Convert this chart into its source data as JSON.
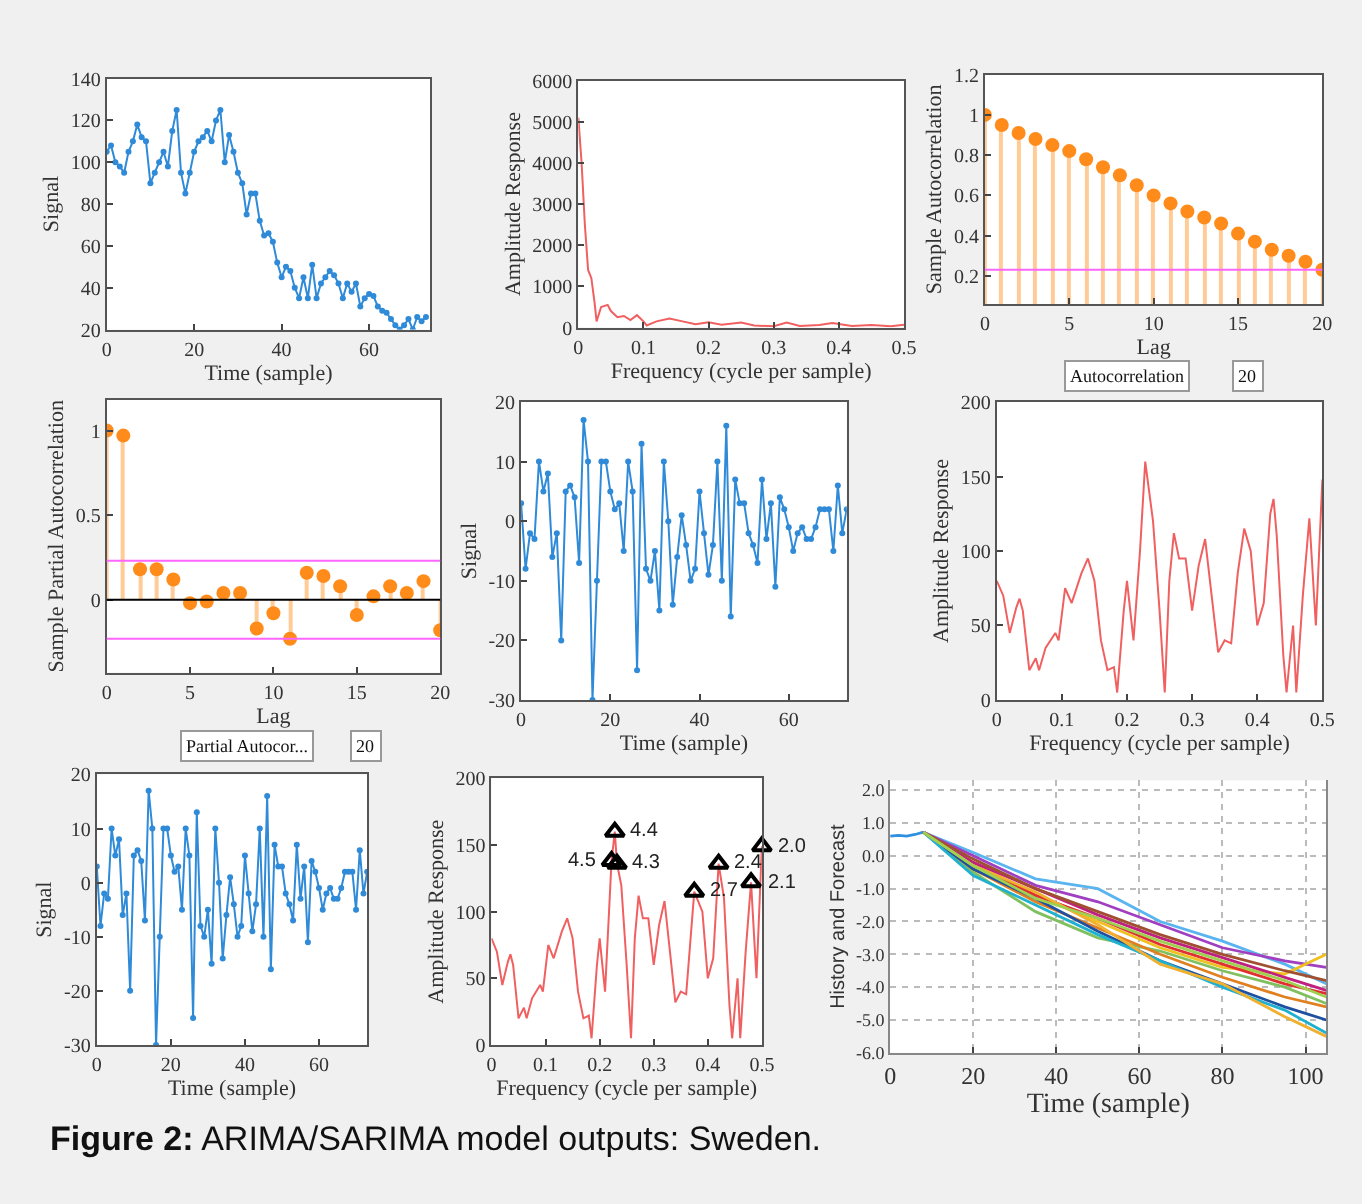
{
  "chart_data": [
    {
      "type": "line",
      "xlabel": "Time (sample)",
      "ylabel": "Signal",
      "marker": "circle",
      "xlim": [
        0,
        74
      ],
      "xticks": [
        0,
        20,
        40,
        60
      ],
      "ylim": [
        20,
        140
      ],
      "yticks": [
        20,
        40,
        60,
        80,
        100,
        120,
        140
      ],
      "x": [
        0,
        1,
        2,
        3,
        4,
        5,
        6,
        7,
        8,
        9,
        10,
        11,
        12,
        13,
        14,
        15,
        16,
        17,
        18,
        19,
        20,
        21,
        22,
        23,
        24,
        25,
        26,
        27,
        28,
        29,
        30,
        31,
        32,
        33,
        34,
        35,
        36,
        37,
        38,
        39,
        40,
        41,
        42,
        43,
        44,
        45,
        46,
        47,
        48,
        49,
        50,
        51,
        52,
        53,
        54,
        55,
        56,
        57,
        58,
        59,
        60,
        61,
        62,
        63,
        64,
        65,
        66,
        67,
        68,
        69,
        70,
        71,
        72,
        73
      ],
      "series": [
        {
          "color": "#2f8ad8",
          "values": [
            105,
            108,
            100,
            98,
            95,
            105,
            110,
            118,
            112,
            110,
            90,
            95,
            100,
            105,
            98,
            115,
            125,
            95,
            85,
            95,
            105,
            110,
            112,
            115,
            110,
            120,
            125,
            100,
            113,
            105,
            95,
            90,
            75,
            85,
            85,
            72,
            65,
            66,
            62,
            52,
            45,
            50,
            48,
            40,
            35,
            45,
            35,
            51,
            35,
            42,
            45,
            48,
            46,
            42,
            35,
            42,
            38,
            42,
            31,
            35,
            37,
            36,
            31,
            29,
            28,
            25,
            22,
            20,
            22,
            25,
            20,
            26,
            24,
            26
          ]
        }
      ]
    },
    {
      "type": "line",
      "xlabel": "Frequency (cycle per sample)",
      "ylabel": "Amplitude Response",
      "xlim": [
        0,
        0.5
      ],
      "xticks": [
        0,
        0.1,
        0.2,
        0.3,
        0.4,
        0.5
      ],
      "ylim": [
        0,
        6000
      ],
      "yticks": [
        0,
        1000,
        2000,
        3000,
        4000,
        5000,
        6000
      ],
      "x": [
        0,
        0.005,
        0.01,
        0.015,
        0.02,
        0.025,
        0.028,
        0.035,
        0.045,
        0.05,
        0.06,
        0.07,
        0.08,
        0.09,
        0.1,
        0.105,
        0.12,
        0.14,
        0.16,
        0.18,
        0.2,
        0.22,
        0.25,
        0.27,
        0.3,
        0.32,
        0.34,
        0.37,
        0.39,
        0.42,
        0.45,
        0.48,
        0.5
      ],
      "series": [
        {
          "color": "#f06060",
          "values": [
            5100,
            4000,
            2500,
            1400,
            1200,
            600,
            150,
            500,
            550,
            400,
            250,
            280,
            180,
            300,
            150,
            50,
            150,
            220,
            150,
            80,
            130,
            70,
            120,
            50,
            30,
            120,
            40,
            60,
            110,
            40,
            60,
            30,
            70
          ]
        }
      ]
    },
    {
      "type": "lollipop",
      "xlabel": "Lag",
      "ylabel": "Sample Autocorrelation",
      "marker": "circle",
      "xlim": [
        0,
        20
      ],
      "xticks": [
        0,
        5,
        10,
        15,
        20
      ],
      "ylim": [
        0.06,
        1.2
      ],
      "yticks": [
        0.2,
        0.4,
        0.6,
        0.8,
        1,
        1.2
      ],
      "x": [
        0,
        1,
        2,
        3,
        4,
        5,
        6,
        7,
        8,
        9,
        10,
        11,
        12,
        13,
        14,
        15,
        16,
        17,
        18,
        19,
        20
      ],
      "series": [
        {
          "color": "#ff8c1a",
          "values": [
            1,
            0.95,
            0.91,
            0.88,
            0.85,
            0.82,
            0.78,
            0.74,
            0.7,
            0.65,
            0.6,
            0.56,
            0.52,
            0.49,
            0.46,
            0.41,
            0.37,
            0.33,
            0.3,
            0.27,
            0.23
          ]
        }
      ],
      "ref_lines": [
        {
          "axis": "y",
          "value": 0.23,
          "color": "#ff66ff"
        }
      ],
      "annotations": [
        "Autocorrelation",
        "20"
      ]
    },
    {
      "type": "lollipop",
      "xlabel": "Lag",
      "ylabel": "Sample Partial Autocorrelation",
      "marker": "circle",
      "xlim": [
        0,
        20
      ],
      "xticks": [
        0,
        5,
        10,
        15,
        20
      ],
      "ylim": [
        -0.43,
        1.18
      ],
      "yticks": [
        0,
        0.5,
        1
      ],
      "x": [
        0,
        1,
        2,
        3,
        4,
        5,
        6,
        7,
        8,
        9,
        10,
        11,
        12,
        13,
        14,
        15,
        16,
        17,
        18,
        19,
        20
      ],
      "series": [
        {
          "color": "#ff8c1a",
          "values": [
            1,
            0.97,
            0.18,
            0.18,
            0.12,
            -0.02,
            -0.01,
            0.04,
            0.04,
            -0.17,
            -0.08,
            -0.23,
            0.16,
            0.14,
            0.08,
            -0.09,
            0.02,
            0.08,
            0.04,
            0.11,
            -0.18
          ]
        }
      ],
      "ref_lines": [
        {
          "axis": "y",
          "value": 0.23,
          "color": "#ff66ff"
        },
        {
          "axis": "y",
          "value": -0.23,
          "color": "#ff66ff"
        },
        {
          "axis": "y",
          "value": 0,
          "color": "#000000"
        }
      ],
      "annotations": [
        "Partial Autocor...",
        "20"
      ]
    },
    {
      "type": "line",
      "xlabel": "Time (sample)",
      "ylabel": "Signal",
      "marker": "circle",
      "xlim": [
        0,
        73
      ],
      "xticks": [
        0,
        20,
        40,
        60
      ],
      "ylim": [
        -30,
        20
      ],
      "yticks": [
        -30,
        -20,
        -10,
        0,
        10,
        20
      ],
      "x": [
        0,
        1,
        2,
        3,
        4,
        5,
        6,
        7,
        8,
        9,
        10,
        11,
        12,
        13,
        14,
        15,
        16,
        17,
        18,
        19,
        20,
        21,
        22,
        23,
        24,
        25,
        26,
        27,
        28,
        29,
        30,
        31,
        32,
        33,
        34,
        35,
        36,
        37,
        38,
        39,
        40,
        41,
        42,
        43,
        44,
        45,
        46,
        47,
        48,
        49,
        50,
        51,
        52,
        53,
        54,
        55,
        56,
        57,
        58,
        59,
        60,
        61,
        62,
        63,
        64,
        65,
        66,
        67,
        68,
        69,
        70,
        71,
        72,
        73
      ],
      "series": [
        {
          "color": "#2f8ad8",
          "values": [
            3,
            -8,
            -2,
            -3,
            10,
            5,
            8,
            -6,
            -2,
            -20,
            5,
            6,
            4,
            -7,
            17,
            10,
            -30,
            -10,
            10,
            10,
            5,
            2,
            3,
            -5,
            10,
            5,
            -25,
            13,
            -8,
            -10,
            -5,
            -15,
            10,
            0,
            -14,
            -6,
            1,
            -4,
            -10,
            -8,
            5,
            -2,
            -9,
            -4,
            10,
            -10,
            16,
            -16,
            7,
            3,
            3,
            -2,
            -4,
            -7,
            7,
            -3,
            3,
            -11,
            4,
            2,
            -1,
            -5,
            -2,
            -1,
            -3,
            -3,
            -1,
            2,
            2,
            2,
            -5,
            6,
            -2,
            2
          ]
        }
      ]
    },
    {
      "type": "line",
      "xlabel": "Frequency (cycle per sample)",
      "ylabel": "Amplitude Response",
      "xlim": [
        0,
        0.5
      ],
      "xticks": [
        0,
        0.1,
        0.2,
        0.3,
        0.4,
        0.5
      ],
      "ylim": [
        0,
        200
      ],
      "yticks": [
        0,
        50,
        100,
        150,
        200
      ],
      "x": [
        0,
        0.01,
        0.02,
        0.03,
        0.035,
        0.04,
        0.05,
        0.06,
        0.065,
        0.075,
        0.09,
        0.095,
        0.105,
        0.115,
        0.13,
        0.14,
        0.15,
        0.16,
        0.17,
        0.18,
        0.185,
        0.195,
        0.2,
        0.21,
        0.22,
        0.228,
        0.24,
        0.25,
        0.258,
        0.265,
        0.272,
        0.28,
        0.29,
        0.3,
        0.31,
        0.32,
        0.33,
        0.34,
        0.35,
        0.36,
        0.37,
        0.38,
        0.39,
        0.4,
        0.41,
        0.42,
        0.425,
        0.43,
        0.44,
        0.445,
        0.455,
        0.46,
        0.47,
        0.48,
        0.49,
        0.5
      ],
      "series": [
        {
          "color": "#f06060",
          "values": [
            80,
            70,
            45,
            62,
            68,
            60,
            20,
            28,
            20,
            35,
            45,
            40,
            75,
            65,
            85,
            95,
            80,
            40,
            20,
            22,
            5,
            60,
            80,
            40,
            100,
            160,
            120,
            60,
            5,
            80,
            112,
            95,
            95,
            60,
            90,
            108,
            70,
            32,
            40,
            38,
            85,
            115,
            100,
            50,
            65,
            125,
            135,
            110,
            30,
            5,
            50,
            5,
            70,
            122,
            50,
            148
          ]
        }
      ]
    },
    {
      "type": "line",
      "xlabel": "Time (sample)",
      "ylabel": "Signal",
      "marker": "circle",
      "xlim": [
        0,
        73
      ],
      "xticks": [
        0,
        20,
        40,
        60
      ],
      "ylim": [
        -30,
        20
      ],
      "yticks": [
        -30,
        -20,
        -10,
        0,
        10,
        20
      ],
      "x": [
        0,
        1,
        2,
        3,
        4,
        5,
        6,
        7,
        8,
        9,
        10,
        11,
        12,
        13,
        14,
        15,
        16,
        17,
        18,
        19,
        20,
        21,
        22,
        23,
        24,
        25,
        26,
        27,
        28,
        29,
        30,
        31,
        32,
        33,
        34,
        35,
        36,
        37,
        38,
        39,
        40,
        41,
        42,
        43,
        44,
        45,
        46,
        47,
        48,
        49,
        50,
        51,
        52,
        53,
        54,
        55,
        56,
        57,
        58,
        59,
        60,
        61,
        62,
        63,
        64,
        65,
        66,
        67,
        68,
        69,
        70,
        71,
        72,
        73
      ],
      "series": [
        {
          "color": "#2f8ad8",
          "values": [
            3,
            -8,
            -2,
            -3,
            10,
            5,
            8,
            -6,
            -2,
            -20,
            5,
            6,
            4,
            -7,
            17,
            10,
            -30,
            -10,
            10,
            10,
            5,
            2,
            3,
            -5,
            10,
            5,
            -25,
            13,
            -8,
            -10,
            -5,
            -15,
            10,
            0,
            -14,
            -6,
            1,
            -4,
            -10,
            -8,
            5,
            -2,
            -9,
            -4,
            10,
            -10,
            16,
            -16,
            7,
            3,
            3,
            -2,
            -4,
            -7,
            7,
            -3,
            3,
            -11,
            4,
            2,
            -1,
            -5,
            -2,
            -1,
            -3,
            -3,
            -1,
            2,
            2,
            2,
            -5,
            6,
            -2,
            2
          ]
        }
      ]
    },
    {
      "type": "line",
      "xlabel": "Frequency (cycle per sample)",
      "ylabel": "Amplitude Response",
      "xlim": [
        0,
        0.5
      ],
      "xticks": [
        0,
        0.1,
        0.2,
        0.3,
        0.4,
        0.5
      ],
      "ylim": [
        0,
        200
      ],
      "yticks": [
        0,
        50,
        100,
        150,
        200
      ],
      "x": [
        0,
        0.01,
        0.02,
        0.03,
        0.035,
        0.04,
        0.05,
        0.06,
        0.065,
        0.075,
        0.09,
        0.095,
        0.105,
        0.115,
        0.13,
        0.14,
        0.15,
        0.16,
        0.17,
        0.18,
        0.185,
        0.195,
        0.2,
        0.21,
        0.222,
        0.228,
        0.232,
        0.24,
        0.25,
        0.258,
        0.265,
        0.272,
        0.28,
        0.29,
        0.3,
        0.31,
        0.32,
        0.33,
        0.34,
        0.35,
        0.36,
        0.375,
        0.39,
        0.4,
        0.41,
        0.42,
        0.43,
        0.44,
        0.445,
        0.455,
        0.46,
        0.47,
        0.48,
        0.49,
        0.5
      ],
      "series": [
        {
          "color": "#f06060",
          "values": [
            80,
            70,
            45,
            62,
            68,
            60,
            20,
            28,
            20,
            35,
            45,
            40,
            75,
            65,
            85,
            95,
            80,
            40,
            20,
            22,
            5,
            60,
            80,
            40,
            138,
            160,
            136,
            120,
            60,
            5,
            80,
            112,
            95,
            95,
            60,
            90,
            108,
            70,
            32,
            40,
            38,
            115,
            100,
            50,
            65,
            136,
            110,
            30,
            5,
            50,
            5,
            70,
            122,
            50,
            149
          ]
        },
        {
          "type": "scatter",
          "marker": "triangle",
          "color": "#000000",
          "x": [
            0.222,
            0.228,
            0.232,
            0.375,
            0.42,
            0.48,
            0.5
          ],
          "values": [
            138,
            160,
            136,
            115,
            136,
            122,
            149
          ]
        }
      ],
      "annotations": [
        {
          "text": "4.5",
          "x": 0.222,
          "y": 138
        },
        {
          "text": "4.4",
          "x": 0.228,
          "y": 160
        },
        {
          "text": "4.3",
          "x": 0.232,
          "y": 136
        },
        {
          "text": "2.7",
          "x": 0.375,
          "y": 115
        },
        {
          "text": "2.4",
          "x": 0.42,
          "y": 136
        },
        {
          "text": "2.1",
          "x": 0.48,
          "y": 122
        },
        {
          "text": "2.0",
          "x": 0.5,
          "y": 149
        }
      ]
    },
    {
      "type": "line",
      "xlabel": "Time (sample)",
      "ylabel": "History and Forecast",
      "grid": true,
      "xlim": [
        0,
        105
      ],
      "xticks": [
        0,
        20,
        40,
        60,
        80,
        100
      ],
      "ylim": [
        -6,
        2.3
      ],
      "yticks": [
        {
          "value": -6,
          "label": "-6.0"
        },
        {
          "value": -5,
          "label": "-5.0"
        },
        {
          "value": -4,
          "label": "-4.0"
        },
        {
          "value": -3,
          "label": "-3.0"
        },
        {
          "value": -2,
          "label": "-2.0"
        },
        {
          "value": -1,
          "label": "-1.0"
        },
        {
          "value": 0,
          "label": "0.0"
        },
        {
          "value": 1,
          "label": "1.0"
        },
        {
          "value": 2,
          "label": "2.0"
        }
      ],
      "x": [
        8,
        20,
        35,
        50,
        65,
        80,
        95,
        105
      ],
      "series": [
        {
          "color": "#3090e0",
          "x": [
            0,
            2,
            4,
            6,
            8
          ],
          "values": [
            0.6,
            0.62,
            0.6,
            0.65,
            0.72
          ]
        },
        {
          "color": "#5ab4f0",
          "values": [
            0.72,
            0.1,
            -0.7,
            -1.0,
            -2.0,
            -2.6,
            -3.3,
            -3.9
          ]
        },
        {
          "color": "#a040c0",
          "values": [
            0.72,
            0.0,
            -0.9,
            -1.4,
            -2.1,
            -2.8,
            -3.2,
            -3.4
          ]
        },
        {
          "color": "#f0c020",
          "values": [
            0.72,
            -0.2,
            -1.2,
            -2.0,
            -2.8,
            -3.4,
            -3.6,
            -3.0
          ]
        },
        {
          "color": "#80c060",
          "values": [
            0.72,
            -0.5,
            -1.7,
            -2.5,
            -2.9,
            -3.5,
            -4.0,
            -4.5
          ]
        },
        {
          "color": "#e03030",
          "values": [
            0.72,
            -0.3,
            -1.2,
            -1.9,
            -2.7,
            -3.3,
            -3.9,
            -4.2
          ]
        },
        {
          "color": "#e08020",
          "values": [
            0.72,
            -0.4,
            -1.4,
            -2.2,
            -3.0,
            -3.7,
            -4.3,
            -4.6
          ]
        },
        {
          "color": "#2050a0",
          "values": [
            0.72,
            -0.4,
            -1.3,
            -2.3,
            -3.2,
            -3.9,
            -4.6,
            -5.0
          ]
        },
        {
          "color": "#c02080",
          "values": [
            0.72,
            -0.2,
            -1.0,
            -1.8,
            -2.5,
            -3.1,
            -3.7,
            -4.1
          ]
        },
        {
          "color": "#20b0d0",
          "values": [
            0.72,
            -0.6,
            -1.5,
            -2.4,
            -3.2,
            -4.0,
            -4.7,
            -5.4
          ]
        },
        {
          "color": "#f0b030",
          "values": [
            0.72,
            -0.3,
            -1.1,
            -2.1,
            -3.3,
            -3.9,
            -4.9,
            -5.5
          ]
        },
        {
          "color": "#a05030",
          "values": [
            0.72,
            -0.1,
            -1.0,
            -1.7,
            -2.4,
            -3.0,
            -3.5,
            -3.8
          ]
        },
        {
          "color": "#a0d050",
          "values": [
            0.72,
            -0.3,
            -1.3,
            -1.9,
            -2.6,
            -3.2,
            -3.8,
            -4.3
          ]
        }
      ]
    },
    {
      "type": "other",
      "annotations": [
        "Figure 2: ARIMA/SARIMA model outputs: Sweden."
      ]
    }
  ]
}
